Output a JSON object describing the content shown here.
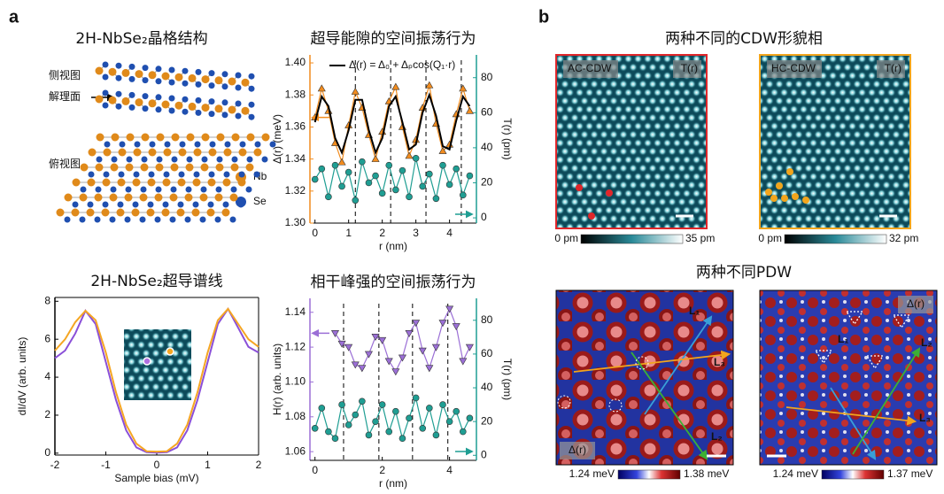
{
  "labels": {
    "a": "a",
    "b": "b"
  },
  "structure": {
    "title": "2H-NbSe₂晶格结构",
    "side_view": "侧视图",
    "cleave_plane": "解理面",
    "top_view": "俯视图",
    "nb": "Nb",
    "se": "Se"
  },
  "chart_data": [
    {
      "type": "line",
      "title": "超导能隙的空间振荡行为",
      "xlabel": "r (nm)",
      "ylabel": "Δ(r) (meV)",
      "y2label": "T(r) (pm)",
      "x": [
        0,
        0.2,
        0.4,
        0.6,
        0.8,
        1.0,
        1.2,
        1.4,
        1.6,
        1.8,
        2.0,
        2.2,
        2.4,
        2.6,
        2.8,
        3.0,
        3.2,
        3.4,
        3.6,
        3.8,
        4.0,
        4.2,
        4.4,
        4.6
      ],
      "xlim": [
        -0.15,
        4.8
      ],
      "xticks": [
        0,
        1,
        2,
        3,
        4
      ],
      "ylim": [
        1.3,
        1.405
      ],
      "yticks": [
        {
          "value": 1.3,
          "label": "1.30"
        },
        {
          "value": 1.32,
          "label": "1.32"
        },
        {
          "value": 1.34,
          "label": "1.34"
        },
        {
          "value": 1.36,
          "label": "1.36"
        },
        {
          "value": 1.38,
          "label": "1.38"
        },
        {
          "value": 1.4,
          "label": "1.40"
        }
      ],
      "y2lim": [
        -3,
        93
      ],
      "y2ticks": [
        0,
        20,
        40,
        60,
        80
      ],
      "ycolor": "#f28c1e",
      "y2color": "#1f9e93",
      "vlines": [
        1.2,
        2.25,
        3.3,
        4.35
      ],
      "series": [
        {
          "color": "#f28c1e",
          "marker": "triangle",
          "values": [
            1.366,
            1.384,
            1.37,
            1.35,
            1.338,
            1.361,
            1.382,
            1.372,
            1.355,
            1.34,
            1.357,
            1.376,
            1.385,
            1.36,
            1.342,
            1.352,
            1.372,
            1.386,
            1.362,
            1.345,
            1.349,
            1.368,
            1.384,
            1.37
          ]
        },
        {
          "name": "Δ(r) = Δ₀ + Δₚcos(Q₁·r)",
          "color": "#000000",
          "values": [
            1.363,
            1.379,
            1.373,
            1.353,
            1.344,
            1.358,
            1.377,
            1.377,
            1.358,
            1.344,
            1.353,
            1.373,
            1.379,
            1.363,
            1.346,
            1.349,
            1.369,
            1.38,
            1.367,
            1.348,
            1.346,
            1.364,
            1.379,
            1.373
          ]
        },
        {
          "color": "#1f9e93",
          "marker": "circle",
          "axis": "y2",
          "values": [
            22,
            28,
            12,
            30,
            18,
            26,
            10,
            32,
            20,
            24,
            14,
            30,
            16,
            27,
            12,
            34,
            18,
            25,
            11,
            30,
            19,
            28,
            13,
            24
          ]
        }
      ]
    },
    {
      "type": "line",
      "title": "2H-NbSe₂超导谱线",
      "xlabel": "Sample bias (mV)",
      "ylabel": "dI/dV (arb. units)",
      "x": [
        -2,
        -1.8,
        -1.6,
        -1.4,
        -1.2,
        -1.0,
        -0.8,
        -0.6,
        -0.4,
        -0.2,
        0,
        0.2,
        0.4,
        0.6,
        0.8,
        1.0,
        1.2,
        1.4,
        1.6,
        1.8,
        2.0
      ],
      "xlim": [
        -2,
        2
      ],
      "xticks": [
        -2,
        -1,
        0,
        1,
        2
      ],
      "ylim": [
        -0.1,
        8.2
      ],
      "yticks": [
        0,
        2,
        4,
        6,
        8
      ],
      "series": [
        {
          "color": "#8a4fd8",
          "values": [
            5.0,
            5.4,
            6.3,
            7.5,
            6.8,
            4.8,
            2.8,
            1.2,
            0.3,
            0.05,
            0.03,
            0.05,
            0.3,
            1.2,
            2.8,
            4.8,
            6.8,
            7.6,
            6.6,
            5.6,
            5.3
          ]
        },
        {
          "color": "#f5a623",
          "values": [
            5.4,
            6.0,
            6.9,
            7.5,
            7.0,
            5.3,
            3.2,
            1.5,
            0.5,
            0.1,
            0.08,
            0.1,
            0.5,
            1.5,
            3.2,
            5.3,
            7.0,
            7.6,
            6.8,
            6.0,
            5.6
          ]
        }
      ]
    },
    {
      "type": "line",
      "title": "相干峰强的空间振荡行为",
      "xlabel": "r (nm)",
      "ylabel": "H(r) (arb. units)",
      "y2label": "T(r) (pm)",
      "x": [
        0,
        0.2,
        0.4,
        0.6,
        0.8,
        1.0,
        1.2,
        1.4,
        1.6,
        1.8,
        2.0,
        2.2,
        2.4,
        2.6,
        2.8,
        3.0,
        3.2,
        3.4,
        3.6,
        3.8,
        4.0,
        4.2,
        4.4,
        4.6
      ],
      "xlim": [
        -0.15,
        4.8
      ],
      "xticks": [
        0,
        2,
        4
      ],
      "ylim": [
        1.055,
        1.148
      ],
      "yticks": [
        {
          "value": 1.06,
          "label": "1.06"
        },
        {
          "value": 1.08,
          "label": "1.08"
        },
        {
          "value": 1.1,
          "label": "1.10"
        },
        {
          "value": 1.12,
          "label": "1.12"
        },
        {
          "value": 1.14,
          "label": "1.14"
        }
      ],
      "y2lim": [
        -3,
        93
      ],
      "y2ticks": [
        0,
        20,
        40,
        60,
        80
      ],
      "ycolor": "#9b6fd6",
      "y2color": "#1f9e93",
      "vlines": [
        0.85,
        1.9,
        2.9,
        3.95
      ],
      "series": [
        {
          "color": "#9b6fd6",
          "marker": "triangle-down",
          "values": [
            null,
            null,
            null,
            1.128,
            1.122,
            1.12,
            1.11,
            1.108,
            1.116,
            1.126,
            1.124,
            1.112,
            1.106,
            1.114,
            1.128,
            1.134,
            1.118,
            1.108,
            1.12,
            1.134,
            1.142,
            1.132,
            1.112,
            1.12
          ]
        },
        {
          "color": "#1f9e93",
          "marker": "circle",
          "axis": "y2",
          "values": [
            16,
            28,
            14,
            10,
            30,
            18,
            24,
            32,
            12,
            20,
            30,
            14,
            26,
            10,
            22,
            34,
            16,
            28,
            12,
            30,
            20,
            26,
            14,
            22
          ]
        }
      ]
    }
  ],
  "cdw": {
    "title": "两种不同的CDW形貌相",
    "images": [
      {
        "label": "AC-CDW",
        "channel": "T(r)",
        "cbar_min": "0 pm",
        "cbar_max": "35 pm"
      },
      {
        "label": "HC-CDW",
        "channel": "T(r)",
        "cbar_min": "0 pm",
        "cbar_max": "32 pm"
      }
    ]
  },
  "pdw": {
    "title": "两种不同PDW",
    "images": [
      {
        "channel": "Δ(r)",
        "lines": [
          "L₁",
          "L₂",
          "L₃"
        ],
        "cbar_min": "1.24 meV",
        "cbar_max": "1.38 meV"
      },
      {
        "channel": "Δ(r)",
        "lines": [
          "L₁",
          "L₂",
          "L₃"
        ],
        "cbar_min": "1.24 meV",
        "cbar_max": "1.37 meV"
      }
    ]
  }
}
